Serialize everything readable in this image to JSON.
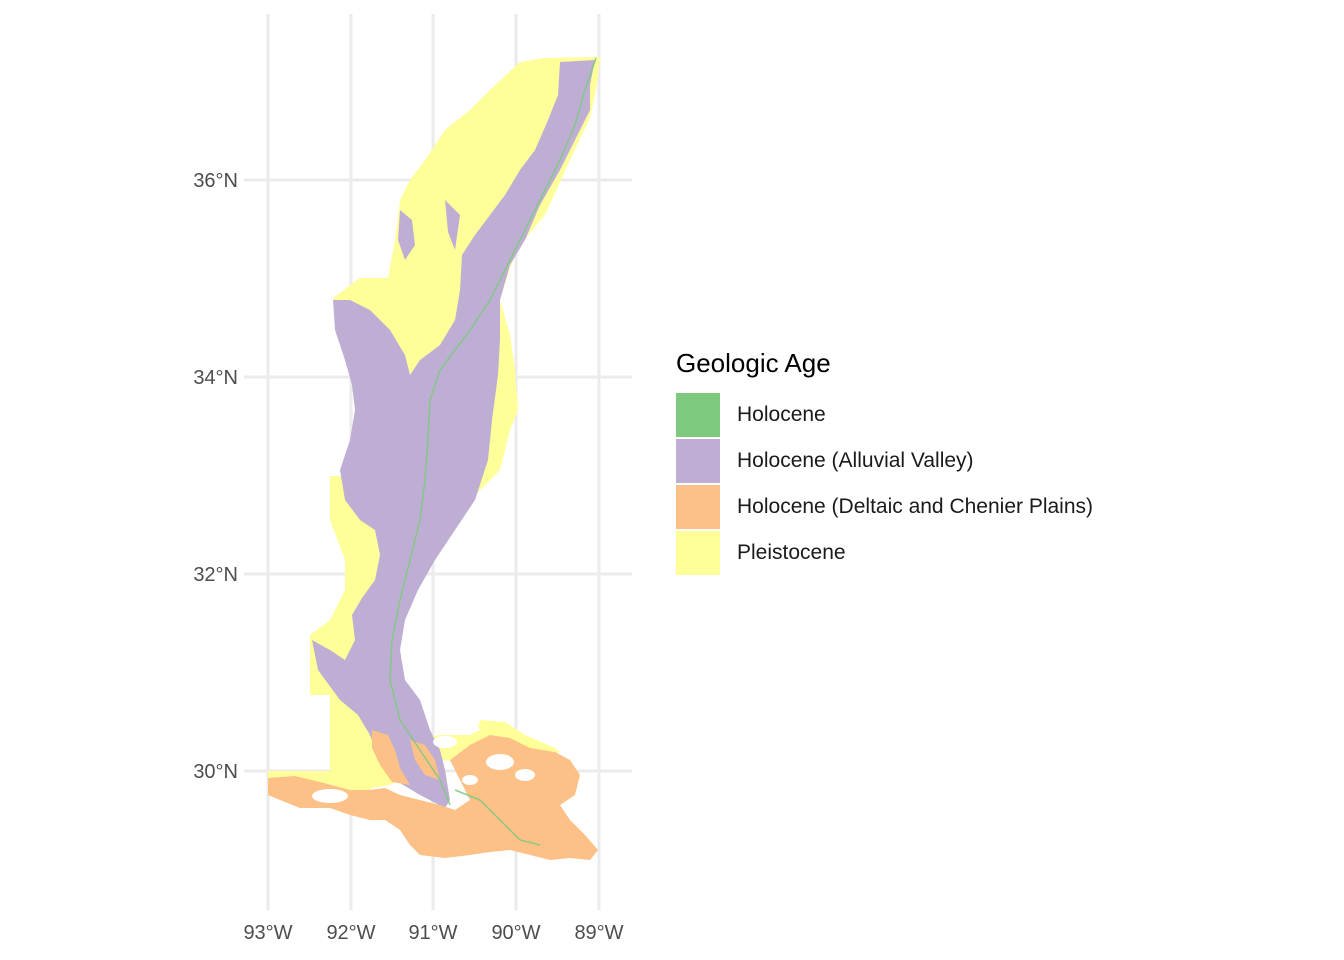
{
  "axes": {
    "x_ticks": [
      "93°W",
      "92°W",
      "91°W",
      "90°W",
      "89°W"
    ],
    "y_ticks": [
      "36°N",
      "34°N",
      "32°N",
      "30°N"
    ]
  },
  "legend": {
    "title": "Geologic Age",
    "items": [
      {
        "label": "Holocene",
        "color": "#7fc97f"
      },
      {
        "label": "Holocene (Alluvial Valley)",
        "color": "#beaed4"
      },
      {
        "label": "Holocene (Deltaic and Chenier Plains)",
        "color": "#fdc086"
      },
      {
        "label": "Pleistocene",
        "color": "#ffff99"
      }
    ]
  },
  "colors": {
    "grid": "#ebebeb",
    "holocene": "#7fc97f",
    "alluvial": "#beaed4",
    "deltaic": "#fdc086",
    "pleistocene": "#ffff99"
  }
}
